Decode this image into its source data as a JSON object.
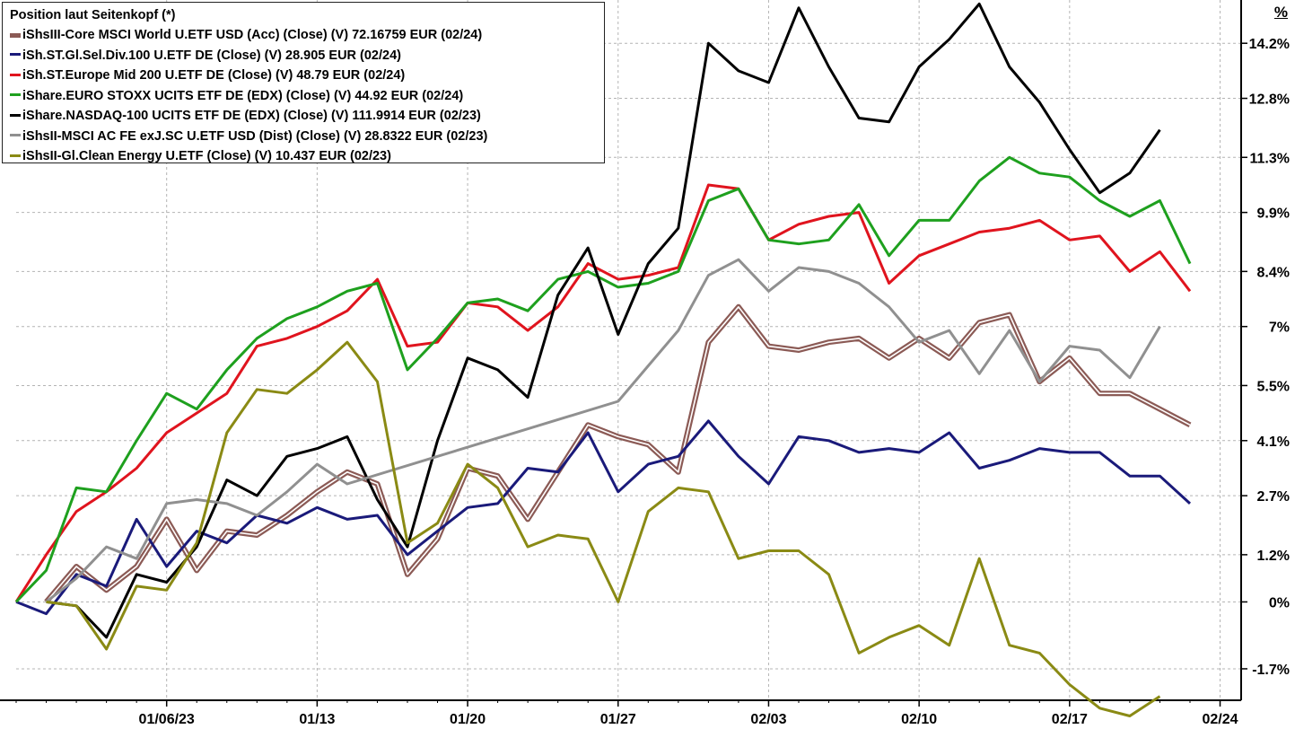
{
  "chart_data": {
    "type": "line",
    "title": "Position laut Seitenkopf (*)",
    "y_unit": "%",
    "ylim": [
      -2.5,
      15.3
    ],
    "y_ticks": [
      {
        "v": 14.2,
        "label": "14.2%"
      },
      {
        "v": 12.8,
        "label": "12.8%"
      },
      {
        "v": 11.3,
        "label": "11.3%"
      },
      {
        "v": 9.9,
        "label": "9.9%"
      },
      {
        "v": 8.4,
        "label": "8.4%"
      },
      {
        "v": 7.0,
        "label": "7%"
      },
      {
        "v": 5.5,
        "label": "5.5%"
      },
      {
        "v": 4.1,
        "label": "4.1%"
      },
      {
        "v": 2.7,
        "label": "2.7%"
      },
      {
        "v": 1.2,
        "label": "1.2%"
      },
      {
        "v": 0.0,
        "label": "0%"
      },
      {
        "v": -1.7,
        "label": "-1.7%"
      }
    ],
    "x_tick_labels": [
      "01/06/23",
      "01/13",
      "01/20",
      "01/27",
      "02/03",
      "02/10",
      "02/17",
      "02/24"
    ],
    "x_tick_idx": [
      5,
      10,
      15,
      20,
      25,
      30,
      35,
      40
    ],
    "x_range": [
      0,
      40.7
    ],
    "grid": true,
    "legend_position": "top-left",
    "series": [
      {
        "name": "iShsIII-Core MSCI World U.ETF USD (Acc) (Close) (V) 72.16759 EUR (02/24)",
        "color": "#8b5a55",
        "style": "double",
        "points": [
          [
            1,
            0.0
          ],
          [
            2,
            0.9
          ],
          [
            3,
            0.3
          ],
          [
            4,
            0.9
          ],
          [
            5,
            2.1
          ],
          [
            6,
            0.8
          ],
          [
            7,
            1.8
          ],
          [
            8,
            1.7
          ],
          [
            9,
            2.2
          ],
          [
            10,
            2.8
          ],
          [
            11,
            3.3
          ],
          [
            12,
            3.0
          ],
          [
            13,
            0.7
          ],
          [
            14,
            1.6
          ],
          [
            15,
            3.4
          ],
          [
            16,
            3.2
          ],
          [
            17,
            2.1
          ],
          [
            18,
            3.3
          ],
          [
            19,
            4.5
          ],
          [
            20,
            4.2
          ],
          [
            21,
            4.0
          ],
          [
            22,
            3.3
          ],
          [
            23,
            6.6
          ],
          [
            24,
            7.5
          ],
          [
            25,
            6.5
          ],
          [
            26,
            6.4
          ],
          [
            27,
            6.6
          ],
          [
            28,
            6.7
          ],
          [
            29,
            6.2
          ],
          [
            30,
            6.7
          ],
          [
            31,
            6.2
          ],
          [
            32,
            7.1
          ],
          [
            33,
            7.3
          ],
          [
            34,
            5.6
          ],
          [
            35,
            6.2
          ],
          [
            36,
            5.3
          ],
          [
            37,
            5.3
          ],
          [
            38,
            4.9
          ],
          [
            39,
            4.5
          ]
        ]
      },
      {
        "name": "iSh.ST.Gl.Sel.Div.100 U.ETF DE (Close) (V) 28.905 EUR (02/24)",
        "color": "#1a1a7a",
        "points": [
          [
            0,
            0.0
          ],
          [
            1,
            -0.3
          ],
          [
            2,
            0.7
          ],
          [
            3,
            0.4
          ],
          [
            4,
            2.1
          ],
          [
            5,
            0.9
          ],
          [
            6,
            1.8
          ],
          [
            7,
            1.5
          ],
          [
            8,
            2.2
          ],
          [
            9,
            2.0
          ],
          [
            10,
            2.4
          ],
          [
            11,
            2.1
          ],
          [
            12,
            2.2
          ],
          [
            13,
            1.2
          ],
          [
            14,
            1.8
          ],
          [
            15,
            2.4
          ],
          [
            16,
            2.5
          ],
          [
            17,
            3.4
          ],
          [
            18,
            3.3
          ],
          [
            19,
            4.3
          ],
          [
            20,
            2.8
          ],
          [
            21,
            3.5
          ],
          [
            22,
            3.7
          ],
          [
            23,
            4.6
          ],
          [
            24,
            3.7
          ],
          [
            25,
            3.0
          ],
          [
            26,
            4.2
          ],
          [
            27,
            4.1
          ],
          [
            28,
            3.8
          ],
          [
            29,
            3.9
          ],
          [
            30,
            3.8
          ],
          [
            31,
            4.3
          ],
          [
            32,
            3.4
          ],
          [
            33,
            3.6
          ],
          [
            34,
            3.9
          ],
          [
            35,
            3.8
          ],
          [
            36,
            3.8
          ],
          [
            37,
            3.2
          ],
          [
            38,
            3.2
          ],
          [
            39,
            2.5
          ]
        ]
      },
      {
        "name": "iSh.ST.Europe Mid 200 U.ETF DE (Close) (V) 48.79 EUR (02/24)",
        "color": "#e0141e",
        "points": [
          [
            0,
            0.0
          ],
          [
            1,
            1.2
          ],
          [
            2,
            2.3
          ],
          [
            3,
            2.8
          ],
          [
            4,
            3.4
          ],
          [
            5,
            4.3
          ],
          [
            6,
            4.8
          ],
          [
            7,
            5.3
          ],
          [
            8,
            6.5
          ],
          [
            9,
            6.7
          ],
          [
            10,
            7.0
          ],
          [
            11,
            7.4
          ],
          [
            12,
            8.2
          ],
          [
            13,
            6.5
          ],
          [
            14,
            6.6
          ],
          [
            15,
            7.6
          ],
          [
            16,
            7.5
          ],
          [
            17,
            6.9
          ],
          [
            18,
            7.5
          ],
          [
            19,
            8.6
          ],
          [
            20,
            8.2
          ],
          [
            21,
            8.3
          ],
          [
            22,
            8.5
          ],
          [
            23,
            10.6
          ],
          [
            24,
            10.5
          ],
          [
            25,
            9.2
          ],
          [
            26,
            9.6
          ],
          [
            27,
            9.8
          ],
          [
            28,
            9.9
          ],
          [
            29,
            8.1
          ],
          [
            30,
            8.8
          ],
          [
            31,
            9.1
          ],
          [
            32,
            9.4
          ],
          [
            33,
            9.5
          ],
          [
            34,
            9.7
          ],
          [
            35,
            9.2
          ],
          [
            36,
            9.3
          ],
          [
            37,
            8.4
          ],
          [
            38,
            8.9
          ],
          [
            39,
            7.9
          ]
        ]
      },
      {
        "name": "iShare.EURO STOXX UCITS ETF DE (EDX) (Close) (V) 44.92 EUR (02/24)",
        "color": "#1ea01e",
        "points": [
          [
            0,
            0.0
          ],
          [
            1,
            0.8
          ],
          [
            2,
            2.9
          ],
          [
            3,
            2.8
          ],
          [
            4,
            4.1
          ],
          [
            5,
            5.3
          ],
          [
            6,
            4.9
          ],
          [
            7,
            5.9
          ],
          [
            8,
            6.7
          ],
          [
            9,
            7.2
          ],
          [
            10,
            7.5
          ],
          [
            11,
            7.9
          ],
          [
            12,
            8.1
          ],
          [
            13,
            5.9
          ],
          [
            14,
            6.7
          ],
          [
            15,
            7.6
          ],
          [
            16,
            7.7
          ],
          [
            17,
            7.4
          ],
          [
            18,
            8.2
          ],
          [
            19,
            8.4
          ],
          [
            20,
            8.0
          ],
          [
            21,
            8.1
          ],
          [
            22,
            8.4
          ],
          [
            23,
            10.2
          ],
          [
            24,
            10.5
          ],
          [
            25,
            9.2
          ],
          [
            26,
            9.1
          ],
          [
            27,
            9.2
          ],
          [
            28,
            10.1
          ],
          [
            29,
            8.8
          ],
          [
            30,
            9.7
          ],
          [
            31,
            9.7
          ],
          [
            32,
            10.7
          ],
          [
            33,
            11.3
          ],
          [
            34,
            10.9
          ],
          [
            35,
            10.8
          ],
          [
            36,
            10.2
          ],
          [
            37,
            9.8
          ],
          [
            38,
            10.2
          ],
          [
            39,
            8.6
          ]
        ]
      },
      {
        "name": "iShare.NASDAQ-100 UCITS ETF DE (EDX) (Close) (V) 111.9914 EUR (02/23)",
        "color": "#000000",
        "points": [
          [
            1,
            0.0
          ],
          [
            2,
            -0.1
          ],
          [
            3,
            -0.9
          ],
          [
            4,
            0.7
          ],
          [
            5,
            0.5
          ],
          [
            6,
            1.4
          ],
          [
            7,
            3.1
          ],
          [
            8,
            2.7
          ],
          [
            9,
            3.7
          ],
          [
            10,
            3.9
          ],
          [
            11,
            4.2
          ],
          [
            12,
            2.6
          ],
          [
            13,
            1.4
          ],
          [
            14,
            4.1
          ],
          [
            15,
            6.2
          ],
          [
            16,
            5.9
          ],
          [
            17,
            5.2
          ],
          [
            18,
            7.8
          ],
          [
            19,
            9.0
          ],
          [
            20,
            6.8
          ],
          [
            21,
            8.6
          ],
          [
            22,
            9.5
          ],
          [
            23,
            14.2
          ],
          [
            24,
            13.5
          ],
          [
            25,
            13.2
          ],
          [
            26,
            15.1
          ],
          [
            27,
            13.6
          ],
          [
            28,
            12.3
          ],
          [
            29,
            12.2
          ],
          [
            30,
            13.6
          ],
          [
            31,
            14.3
          ],
          [
            32,
            15.2
          ],
          [
            33,
            13.6
          ],
          [
            34,
            12.7
          ],
          [
            35,
            11.5
          ],
          [
            36,
            10.4
          ],
          [
            37,
            10.9
          ],
          [
            38,
            12.0
          ]
        ]
      },
      {
        "name": "iShsII-MSCI AC FE exJ.SC U.ETF USD (Dist) (Close) (V) 28.8322 EUR (02/23)",
        "color": "#909090",
        "points": [
          [
            1,
            0.0
          ],
          [
            2,
            0.6
          ],
          [
            3,
            1.4
          ],
          [
            4,
            1.1
          ],
          [
            5,
            2.5
          ],
          [
            6,
            2.6
          ],
          [
            7,
            2.5
          ],
          [
            8,
            2.2
          ],
          [
            9,
            2.8
          ],
          [
            10,
            3.5
          ],
          [
            11,
            3.0
          ],
          [
            20,
            5.1
          ],
          [
            21,
            6.0
          ],
          [
            22,
            6.9
          ],
          [
            23,
            8.3
          ],
          [
            24,
            8.7
          ],
          [
            25,
            7.9
          ],
          [
            26,
            8.5
          ],
          [
            27,
            8.4
          ],
          [
            28,
            8.1
          ],
          [
            29,
            7.5
          ],
          [
            30,
            6.6
          ],
          [
            31,
            6.9
          ],
          [
            32,
            5.8
          ],
          [
            33,
            6.9
          ],
          [
            34,
            5.6
          ],
          [
            35,
            6.5
          ],
          [
            36,
            6.4
          ],
          [
            37,
            5.7
          ],
          [
            38,
            7.0
          ]
        ]
      },
      {
        "name": "iShsII-Gl.Clean Energy U.ETF (Close) (V) 10.437 EUR (02/23)",
        "color": "#8a8a14",
        "points": [
          [
            1,
            0.0
          ],
          [
            2,
            -0.1
          ],
          [
            3,
            -1.2
          ],
          [
            4,
            0.4
          ],
          [
            5,
            0.3
          ],
          [
            6,
            1.5
          ],
          [
            7,
            4.3
          ],
          [
            8,
            5.4
          ],
          [
            9,
            5.3
          ],
          [
            10,
            5.9
          ],
          [
            11,
            6.6
          ],
          [
            12,
            5.6
          ],
          [
            13,
            1.5
          ],
          [
            14,
            2.0
          ],
          [
            15,
            3.5
          ],
          [
            16,
            2.9
          ],
          [
            17,
            1.4
          ],
          [
            18,
            1.7
          ],
          [
            19,
            1.6
          ],
          [
            20,
            0.0
          ],
          [
            21,
            2.3
          ],
          [
            22,
            2.9
          ],
          [
            23,
            2.8
          ],
          [
            24,
            1.1
          ],
          [
            25,
            1.3
          ],
          [
            26,
            1.3
          ],
          [
            27,
            0.7
          ],
          [
            28,
            -1.3
          ],
          [
            29,
            -0.9
          ],
          [
            30,
            -0.6
          ],
          [
            31,
            -1.1
          ],
          [
            32,
            1.1
          ],
          [
            33,
            -1.1
          ],
          [
            34,
            -1.3
          ],
          [
            35,
            -2.1
          ],
          [
            36,
            -2.7
          ],
          [
            37,
            -2.9
          ],
          [
            38,
            -2.4
          ]
        ]
      }
    ]
  }
}
